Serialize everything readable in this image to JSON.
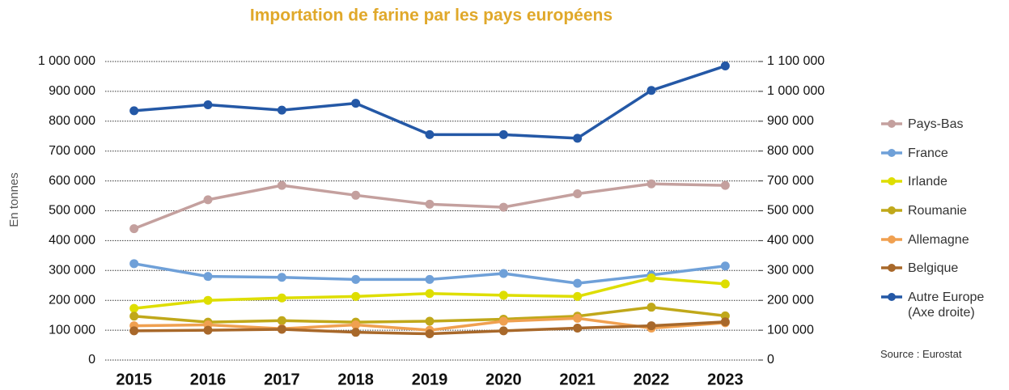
{
  "chart_data": {
    "type": "line",
    "title": "Importation de farine par les pays européens",
    "ylabel": "En tonnes",
    "source": "Source : Eurostat",
    "categories": [
      "2015",
      "2016",
      "2017",
      "2018",
      "2019",
      "2020",
      "2021",
      "2022",
      "2023"
    ],
    "series": [
      {
        "name": "Pays-Bas",
        "color": "#c4a09e",
        "values": [
          440000,
          537000,
          585000,
          552000,
          522000,
          512000,
          557000,
          590000,
          585000
        ]
      },
      {
        "name": "France",
        "color": "#6fa0d8",
        "values": [
          323000,
          280000,
          277000,
          270000,
          270000,
          290000,
          257000,
          285000,
          315000
        ]
      },
      {
        "name": "Irlande",
        "color": "#dede00",
        "values": [
          173000,
          200000,
          208000,
          213000,
          223000,
          217000,
          213000,
          275000,
          255000
        ]
      },
      {
        "name": "Roumanie",
        "color": "#c0a81a",
        "values": [
          147000,
          127000,
          132000,
          127000,
          130000,
          137000,
          147000,
          177000,
          148000
        ]
      },
      {
        "name": "Allemagne",
        "color": "#f0a050",
        "values": [
          115000,
          118000,
          105000,
          118000,
          100000,
          130000,
          140000,
          107000,
          125000
        ]
      },
      {
        "name": "Belgique",
        "color": "#a8682a",
        "values": [
          98000,
          100000,
          103000,
          93000,
          88000,
          98000,
          107000,
          115000,
          128000
        ]
      },
      {
        "name": "Autre Europe (Axe droite)",
        "color": "#2458a6",
        "axis": "y2",
        "values": [
          935000,
          955000,
          937000,
          960000,
          855000,
          855000,
          843000,
          1003000,
          1085000
        ]
      }
    ],
    "ylim": [
      0,
      1000000
    ],
    "yticks": [
      0,
      {
        "value": 100000,
        "label": "100 000"
      },
      {
        "value": 200000,
        "label": "200 000"
      },
      {
        "value": 300000,
        "label": "300 000"
      },
      {
        "value": 400000,
        "label": "400 000"
      },
      {
        "value": 500000,
        "label": "500 000"
      },
      {
        "value": 600000,
        "label": "600 000"
      },
      {
        "value": 700000,
        "label": "700 000"
      },
      {
        "value": 800000,
        "label": "800 000"
      },
      {
        "value": 900000,
        "label": "900 000"
      },
      {
        "value": 1000000,
        "label": "1 000 000"
      }
    ],
    "y2lim": [
      0,
      1100000
    ],
    "y2_axis_break": [
      500000,
      600000
    ],
    "y2ticks": [
      0,
      {
        "value": 100000,
        "label": "100 000"
      },
      {
        "value": 200000,
        "label": "200 000"
      },
      {
        "value": 300000,
        "label": "300 000"
      },
      {
        "value": 400000,
        "label": "400 000"
      },
      {
        "value": 500000,
        "label": "500 000"
      },
      {
        "value": 700000,
        "label": "700 000"
      },
      {
        "value": 800000,
        "label": "800 000"
      },
      {
        "value": 900000,
        "label": "900 000"
      },
      {
        "value": 1000000,
        "label": "1 000 000"
      },
      {
        "value": 1100000,
        "label": "1 100 000"
      }
    ],
    "grid": true
  }
}
